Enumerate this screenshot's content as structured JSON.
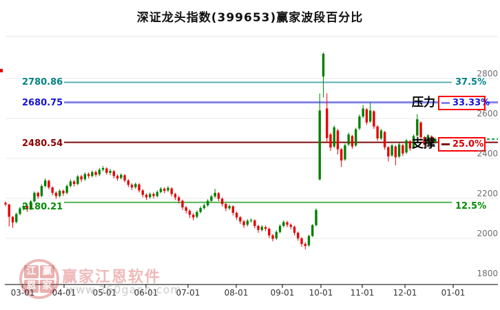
{
  "title": "深证龙头指数(399653)赢家波段百分比",
  "watermark": {
    "logo_chars": [
      "江",
      "赢",
      "恩",
      "家"
    ],
    "brand_text": "赢家江恩软件",
    "url_text": "www.360gann.com"
  },
  "chart_data": {
    "type": "candlestick",
    "title": "深证龙头指数(399653)赢家波段百分比",
    "index_name": "深证龙头指数",
    "index_code": "399653",
    "grid": true,
    "up_color": "#008000",
    "down_color": "#e60000",
    "y_axis": {
      "min": 1800,
      "max": 2800,
      "tick_values": [
        2800,
        2600,
        2400,
        2200,
        2000,
        1800
      ],
      "tick_labels": [
        "2800",
        "2600",
        "2400",
        "2200",
        "2000",
        "1800"
      ]
    },
    "x_axis": {
      "tick_labels": [
        "03-01",
        "04-01",
        "05-01",
        "06-01",
        "07-01",
        "08-01",
        "09-01",
        "10-01",
        "11-01",
        "12-01",
        "01-01"
      ]
    },
    "pressure_label": "压力",
    "support_label": "支撑",
    "levels": [
      {
        "price": "2780.86",
        "value": 2780.86,
        "pct": "37.5%",
        "line_color": "#5bafb2",
        "boxed": false
      },
      {
        "price": "2680.75",
        "value": 2680.75,
        "pct": "33.33%",
        "line_color": "#8282e8",
        "boxed": true
      },
      {
        "price": "2480.54",
        "value": 2480.54,
        "pct": "25.0%",
        "line_color": "#7e0b0b",
        "boxed": true
      },
      {
        "price": "2180.21",
        "value": 2180.21,
        "pct": "12.5%",
        "line_color": "#52b152",
        "boxed": false
      }
    ],
    "last_price_line": {
      "price": 2497,
      "style": "dashed",
      "color": "#00a550"
    },
    "candles": [
      [
        2178,
        2170,
        2160,
        2185
      ],
      [
        2170,
        2108,
        2060,
        2172
      ],
      [
        2108,
        2080,
        2052,
        2112
      ],
      [
        2082,
        2122,
        2075,
        2128
      ],
      [
        2122,
        2150,
        2115,
        2158
      ],
      [
        2150,
        2162,
        2140,
        2170
      ],
      [
        2162,
        2145,
        2132,
        2168
      ],
      [
        2148,
        2185,
        2142,
        2192
      ],
      [
        2185,
        2228,
        2180,
        2235
      ],
      [
        2228,
        2210,
        2198,
        2234
      ],
      [
        2212,
        2262,
        2206,
        2270
      ],
      [
        2262,
        2290,
        2255,
        2300
      ],
      [
        2288,
        2255,
        2245,
        2294
      ],
      [
        2255,
        2228,
        2215,
        2260
      ],
      [
        2228,
        2212,
        2198,
        2235
      ],
      [
        2212,
        2238,
        2205,
        2246
      ],
      [
        2238,
        2225,
        2212,
        2245
      ],
      [
        2228,
        2262,
        2220,
        2270
      ],
      [
        2262,
        2285,
        2255,
        2295
      ],
      [
        2285,
        2272,
        2260,
        2292
      ],
      [
        2272,
        2310,
        2266,
        2318
      ],
      [
        2310,
        2295,
        2282,
        2318
      ],
      [
        2296,
        2322,
        2288,
        2330
      ],
      [
        2322,
        2312,
        2300,
        2330
      ],
      [
        2312,
        2332,
        2305,
        2340
      ],
      [
        2332,
        2318,
        2308,
        2340
      ],
      [
        2320,
        2344,
        2312,
        2352
      ],
      [
        2344,
        2352,
        2335,
        2362
      ],
      [
        2350,
        2328,
        2318,
        2356
      ],
      [
        2328,
        2338,
        2316,
        2348
      ],
      [
        2336,
        2312,
        2300,
        2342
      ],
      [
        2312,
        2300,
        2288,
        2320
      ],
      [
        2302,
        2318,
        2295,
        2326
      ],
      [
        2316,
        2290,
        2280,
        2322
      ],
      [
        2290,
        2268,
        2256,
        2296
      ],
      [
        2268,
        2255,
        2242,
        2275
      ],
      [
        2256,
        2272,
        2248,
        2280
      ],
      [
        2270,
        2240,
        2230,
        2276
      ],
      [
        2240,
        2218,
        2205,
        2246
      ],
      [
        2218,
        2205,
        2192,
        2226
      ],
      [
        2206,
        2222,
        2198,
        2230
      ],
      [
        2222,
        2212,
        2200,
        2230
      ],
      [
        2212,
        2232,
        2205,
        2240
      ],
      [
        2232,
        2248,
        2226,
        2256
      ],
      [
        2248,
        2238,
        2226,
        2255
      ],
      [
        2240,
        2253,
        2232,
        2262
      ],
      [
        2250,
        2222,
        2210,
        2256
      ],
      [
        2222,
        2205,
        2192,
        2228
      ],
      [
        2205,
        2188,
        2175,
        2212
      ],
      [
        2188,
        2155,
        2142,
        2194
      ],
      [
        2155,
        2138,
        2125,
        2162
      ],
      [
        2138,
        2118,
        2102,
        2145
      ],
      [
        2118,
        2105,
        2090,
        2126
      ],
      [
        2108,
        2132,
        2100,
        2140
      ],
      [
        2132,
        2152,
        2125,
        2160
      ],
      [
        2152,
        2165,
        2144,
        2174
      ],
      [
        2165,
        2188,
        2158,
        2196
      ],
      [
        2188,
        2210,
        2182,
        2218
      ],
      [
        2210,
        2228,
        2202,
        2248
      ],
      [
        2226,
        2198,
        2186,
        2232
      ],
      [
        2198,
        2172,
        2160,
        2205
      ],
      [
        2172,
        2150,
        2136,
        2178
      ],
      [
        2150,
        2162,
        2142,
        2170
      ],
      [
        2160,
        2128,
        2115,
        2166
      ],
      [
        2128,
        2105,
        2092,
        2134
      ],
      [
        2106,
        2085,
        2072,
        2112
      ],
      [
        2085,
        2066,
        2052,
        2092
      ],
      [
        2068,
        2088,
        2060,
        2096
      ],
      [
        2088,
        2092,
        2078,
        2100
      ],
      [
        2090,
        2062,
        2050,
        2096
      ],
      [
        2062,
        2042,
        2028,
        2068
      ],
      [
        2042,
        2058,
        2034,
        2066
      ],
      [
        2056,
        2048,
        2036,
        2064
      ],
      [
        2048,
        2015,
        2002,
        2054
      ],
      [
        2015,
        1998,
        1985,
        2022
      ],
      [
        2000,
        2032,
        1992,
        2040
      ],
      [
        2032,
        2062,
        2025,
        2070
      ],
      [
        2062,
        2082,
        2055,
        2090
      ],
      [
        2080,
        2068,
        2056,
        2088
      ],
      [
        2068,
        2058,
        2045,
        2075
      ],
      [
        2058,
        2028,
        2015,
        2064
      ],
      [
        2028,
        2000,
        1988,
        2034
      ],
      [
        2000,
        1972,
        1958,
        2006
      ],
      [
        1972,
        1962,
        1945,
        1980
      ],
      [
        1965,
        2012,
        1958,
        2018
      ],
      [
        2012,
        2066,
        2006,
        2072
      ],
      [
        2066,
        2142,
        2060,
        2150
      ],
      [
        2295,
        2640,
        2290,
        2725
      ],
      [
        2810,
        2924,
        2705,
        2930
      ],
      [
        2650,
        2502,
        2478,
        2726
      ],
      [
        2520,
        2455,
        2438,
        2528
      ],
      [
        2460,
        2556,
        2452,
        2565
      ],
      [
        2540,
        2446,
        2420,
        2548
      ],
      [
        2446,
        2390,
        2358,
        2452
      ],
      [
        2395,
        2466,
        2388,
        2474
      ],
      [
        2470,
        2520,
        2462,
        2530
      ],
      [
        2512,
        2460,
        2448,
        2518
      ],
      [
        2465,
        2546,
        2458,
        2554
      ],
      [
        2550,
        2610,
        2542,
        2620
      ],
      [
        2610,
        2650,
        2602,
        2668
      ],
      [
        2646,
        2580,
        2568,
        2652
      ],
      [
        2585,
        2640,
        2578,
        2680
      ],
      [
        2636,
        2560,
        2548,
        2642
      ],
      [
        2560,
        2500,
        2488,
        2566
      ],
      [
        2500,
        2540,
        2492,
        2548
      ],
      [
        2532,
        2456,
        2444,
        2538
      ],
      [
        2456,
        2410,
        2385,
        2462
      ],
      [
        2415,
        2465,
        2408,
        2472
      ],
      [
        2460,
        2406,
        2365,
        2466
      ],
      [
        2410,
        2470,
        2402,
        2478
      ],
      [
        2466,
        2425,
        2412,
        2472
      ],
      [
        2430,
        2490,
        2422,
        2498
      ],
      [
        2486,
        2450,
        2438,
        2492
      ],
      [
        2455,
        2512,
        2448,
        2520
      ],
      [
        2515,
        2596,
        2508,
        2622
      ],
      [
        2580,
        2506,
        2494,
        2586
      ],
      [
        2506,
        2470,
        2455,
        2512
      ],
      [
        2475,
        2516,
        2468,
        2522
      ],
      [
        2510,
        2480,
        2466,
        2516
      ],
      [
        2482,
        2497,
        2474,
        2505
      ]
    ]
  }
}
